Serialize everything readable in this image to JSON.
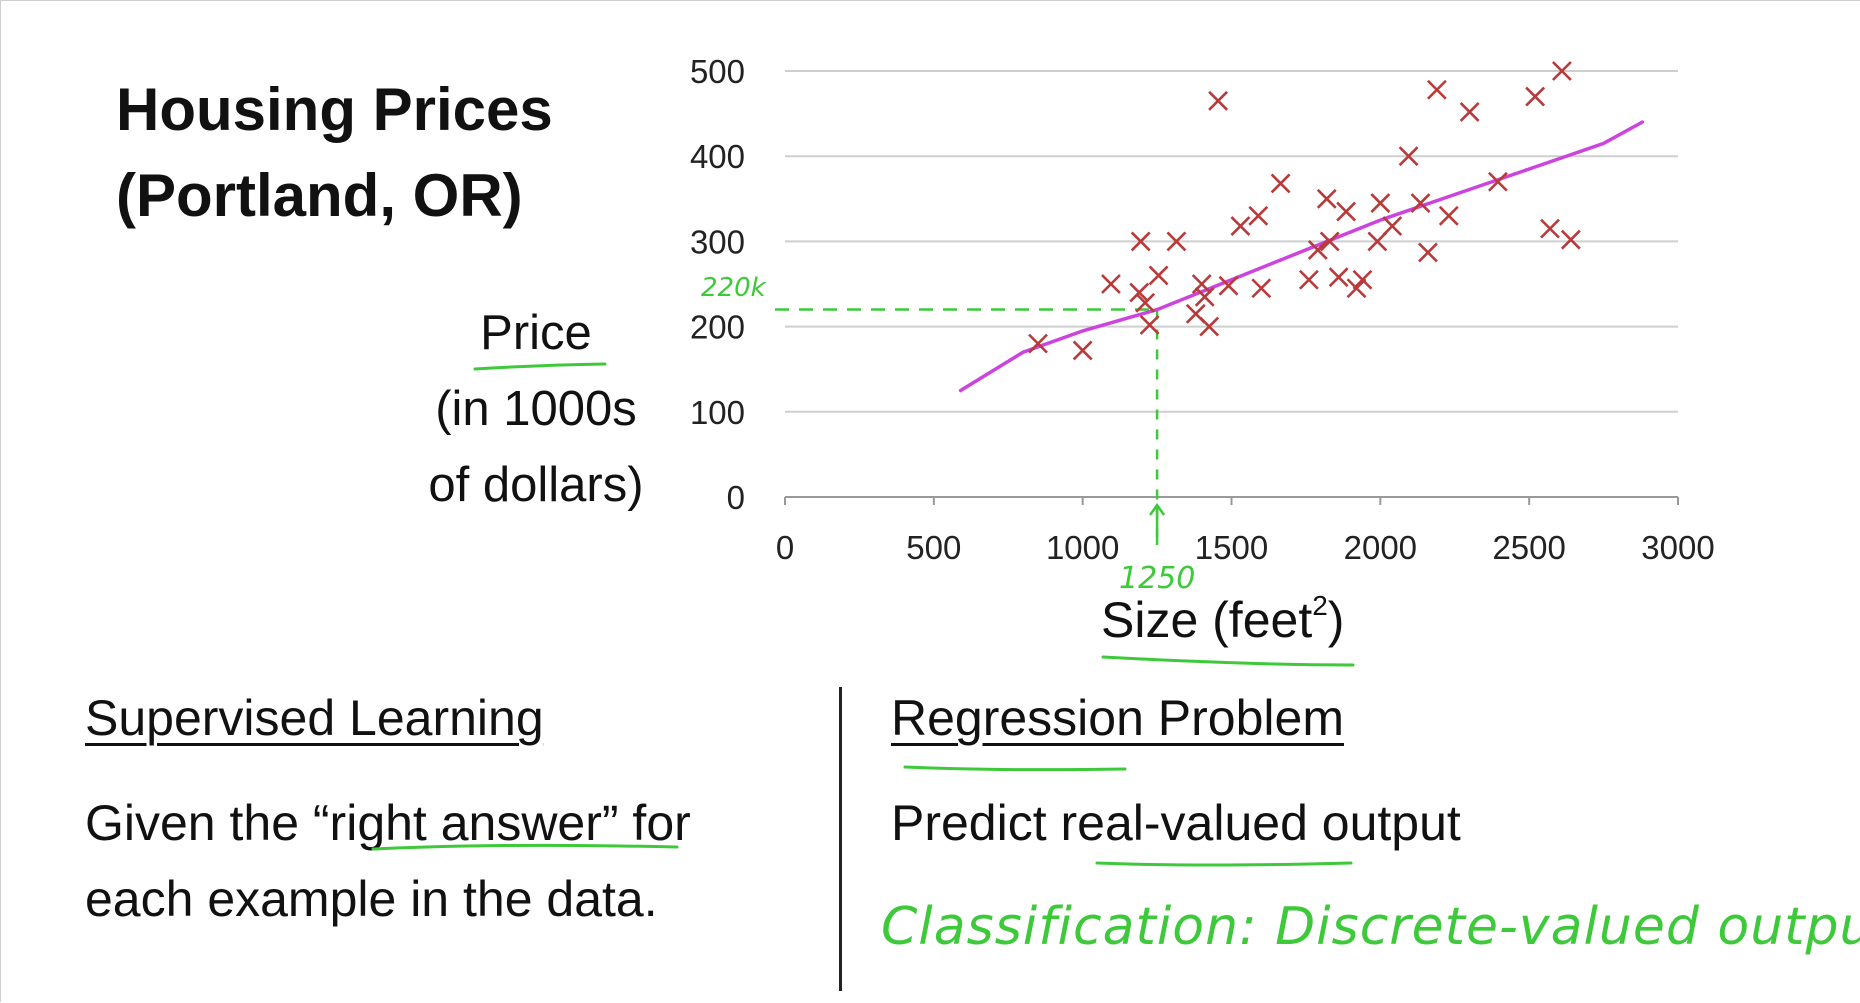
{
  "slide": {
    "title": "Housing Prices\n(Portland, OR)",
    "ylabel_lines": [
      "Price",
      "(in 1000s",
      "of dollars)"
    ],
    "xlabel": "Size (feet",
    "xlabel_sup": "2",
    "xlabel_close": ")",
    "left_heading": "Supervised Learning",
    "left_body_1": "Given the “right answer” for",
    "left_body_2": "each example in the data.",
    "right_heading": "Regression Problem",
    "right_body": "Predict real-valued output",
    "handwritten_note": "Classification: Discrete-valued output",
    "annotation_y": "220k",
    "annotation_x": "1250"
  },
  "colors": {
    "points": "#b83a3a",
    "fit_line": "#cc44dd",
    "annotation": "#3ec93a",
    "grid": "#cfcfcf"
  },
  "chart_data": {
    "type": "scatter",
    "title": "",
    "xlabel": "Size (feet²)",
    "ylabel": "Price (in 1000s of dollars)",
    "xlim": [
      0,
      3000
    ],
    "ylim": [
      0,
      500
    ],
    "xticks": [
      0,
      500,
      1000,
      1500,
      2000,
      2500,
      3000
    ],
    "yticks": [
      0,
      100,
      200,
      300,
      400,
      500
    ],
    "grid": "horizontal",
    "points": [
      [
        850,
        180
      ],
      [
        1000,
        172
      ],
      [
        1095,
        250
      ],
      [
        1195,
        300
      ],
      [
        1190,
        240
      ],
      [
        1210,
        228
      ],
      [
        1225,
        202
      ],
      [
        1255,
        260
      ],
      [
        1315,
        300
      ],
      [
        1380,
        215
      ],
      [
        1400,
        250
      ],
      [
        1410,
        235
      ],
      [
        1425,
        200
      ],
      [
        1455,
        465
      ],
      [
        1490,
        248
      ],
      [
        1530,
        318
      ],
      [
        1590,
        330
      ],
      [
        1600,
        245
      ],
      [
        1665,
        368
      ],
      [
        1760,
        255
      ],
      [
        1790,
        290
      ],
      [
        1820,
        350
      ],
      [
        1830,
        300
      ],
      [
        1860,
        258
      ],
      [
        1885,
        335
      ],
      [
        1920,
        245
      ],
      [
        1940,
        255
      ],
      [
        1990,
        300
      ],
      [
        2000,
        345
      ],
      [
        2040,
        318
      ],
      [
        2095,
        400
      ],
      [
        2135,
        345
      ],
      [
        2160,
        287
      ],
      [
        2190,
        478
      ],
      [
        2230,
        330
      ],
      [
        2300,
        452
      ],
      [
        2395,
        370
      ],
      [
        2520,
        470
      ],
      [
        2570,
        315
      ],
      [
        2610,
        500
      ],
      [
        2640,
        302
      ]
    ],
    "fit_line": {
      "x": [
        590,
        800,
        1000,
        1250,
        1500,
        1750,
        2000,
        2250,
        2500,
        2750,
        2880
      ],
      "y": [
        125,
        170,
        195,
        220,
        255,
        290,
        325,
        355,
        385,
        415,
        440
      ]
    },
    "annotation": {
      "x": 1250,
      "y": 220
    }
  }
}
